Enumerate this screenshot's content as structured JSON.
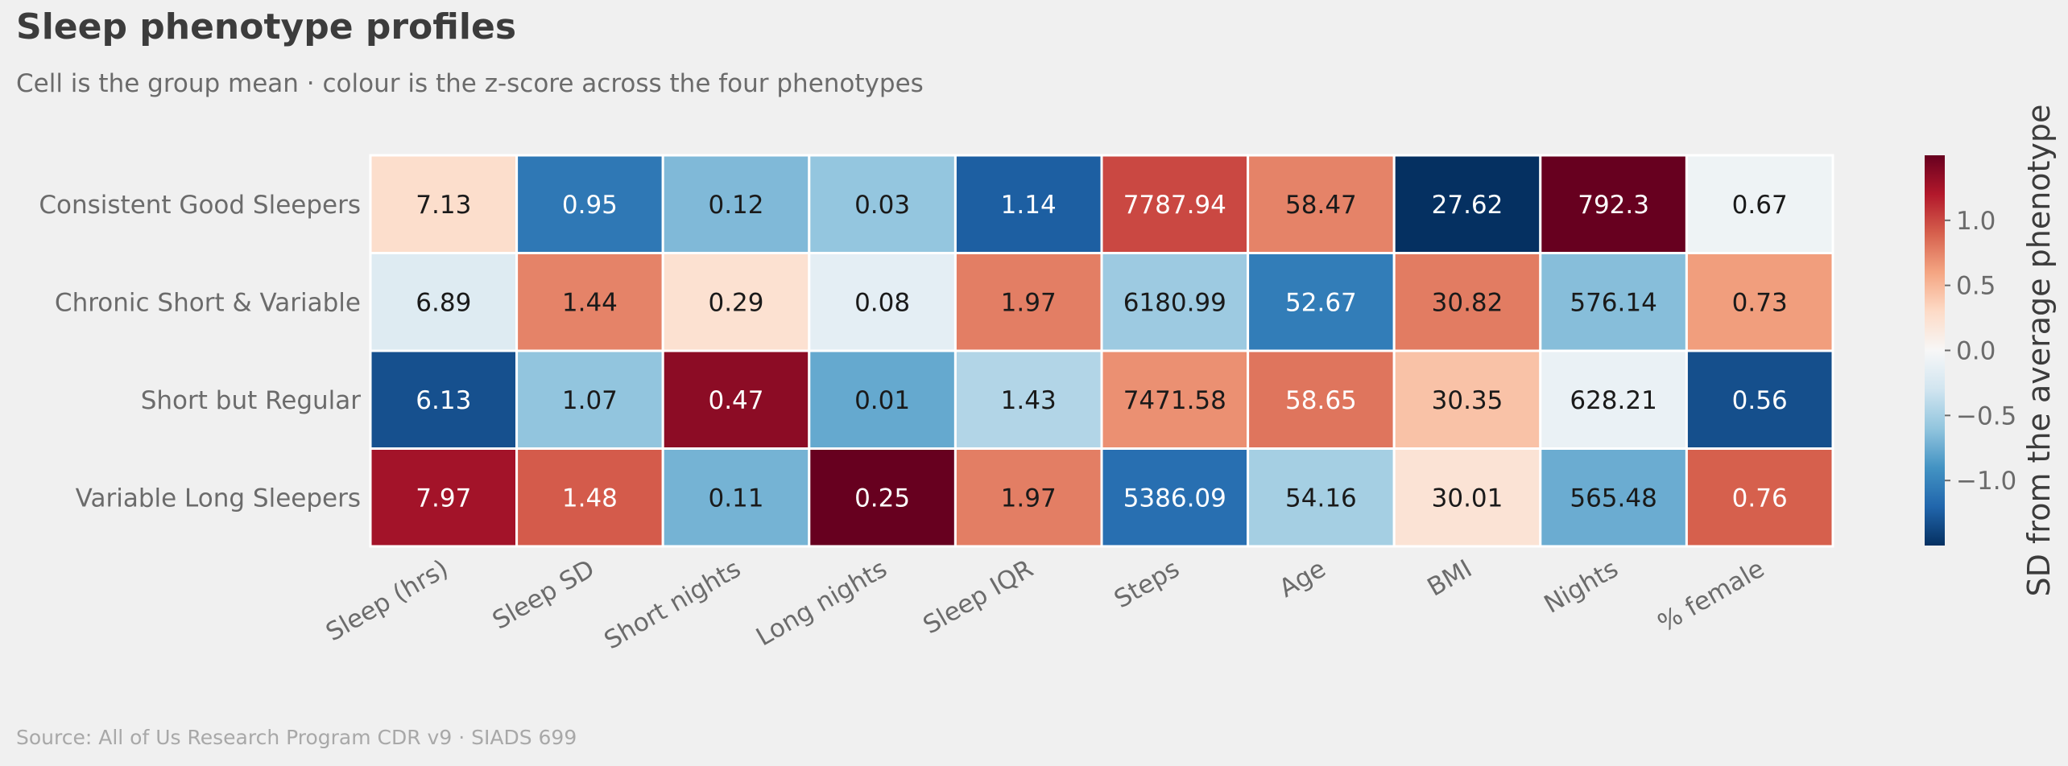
{
  "chart_data": {
    "type": "heatmap",
    "title": "Sleep phenotype profiles",
    "subtitle": "Cell is the group mean · colour is the z-score across the four phenotypes",
    "source": "Source: All of Us Research Program CDR v9 · SIADS 699",
    "rows": [
      "Consistent Good Sleepers",
      "Chronic Short & Variable",
      "Short but Regular",
      "Variable Long Sleepers"
    ],
    "columns": [
      "Sleep (hrs)",
      "Sleep SD",
      "Short nights",
      "Long nights",
      "Sleep IQR",
      "Steps",
      "Age",
      "BMI",
      "Nights",
      "% female"
    ],
    "values": [
      [
        "7.13",
        "0.95",
        "0.12",
        "0.03",
        "1.14",
        "7787.94",
        "58.47",
        "27.62",
        "792.3",
        "0.67"
      ],
      [
        "6.89",
        "1.44",
        "0.29",
        "0.08",
        "1.97",
        "6180.99",
        "52.67",
        "30.82",
        "576.14",
        "0.73"
      ],
      [
        "6.13",
        "1.07",
        "0.47",
        "0.01",
        "1.43",
        "7471.58",
        "58.65",
        "30.35",
        "628.21",
        "0.56"
      ],
      [
        "7.97",
        "1.48",
        "0.11",
        "0.25",
        "1.97",
        "5386.09",
        "54.16",
        "30.01",
        "565.48",
        "0.76"
      ]
    ],
    "zscores": [
      [
        0.27,
        -1.08,
        -0.67,
        -0.59,
        -1.24,
        1.0,
        0.75,
        -1.5,
        1.5,
        -0.07
      ],
      [
        -0.2,
        0.75,
        0.24,
        -0.15,
        0.77,
        -0.55,
        -1.05,
        0.78,
        -0.64,
        0.63
      ],
      [
        -1.32,
        -0.6,
        1.35,
        -0.77,
        -0.45,
        0.69,
        0.81,
        0.44,
        -0.1,
        -1.33
      ],
      [
        1.26,
        0.92,
        -0.71,
        1.51,
        0.77,
        -1.14,
        -0.51,
        0.21,
        -0.75,
        0.9
      ]
    ],
    "colormap": "RdBu_r",
    "color_range": [
      -1.5,
      1.5
    ],
    "colorbar": {
      "label": "SD from the average phenotype",
      "ticks": [
        1.0,
        0.5,
        0.0,
        -0.5,
        -1.0
      ],
      "tick_labels": [
        "1.0",
        "0.5",
        "0.0",
        "−0.5",
        "−1.0"
      ]
    },
    "colors": {
      "background": "#f0f0f0",
      "cell_border": "#ffffff",
      "title": "#3c3c3c",
      "label": "#6b6b6b",
      "source": "#a8a8a8"
    }
  }
}
